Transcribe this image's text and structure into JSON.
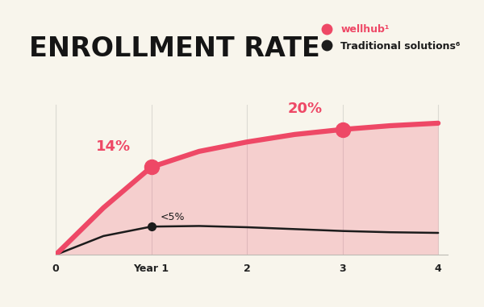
{
  "chart_data": {
    "type": "line",
    "title": "ENROLLMENT RATE",
    "x": [
      0,
      0.5,
      1,
      1.5,
      2,
      2.5,
      3,
      3.5,
      4
    ],
    "series": [
      {
        "name": "wellhub¹",
        "color": "#ee4866",
        "values": [
          0,
          7.5,
          14,
          16.5,
          18,
          19.2,
          20,
          20.6,
          21
        ]
      },
      {
        "name": "Traditional solutions⁶",
        "color": "#1c1c1c",
        "values": [
          0,
          3,
          4.5,
          4.6,
          4.4,
          4.1,
          3.8,
          3.6,
          3.5
        ]
      }
    ],
    "annotations": [
      {
        "text": "14%",
        "x": 1,
        "y": 14,
        "series": "wellhub¹"
      },
      {
        "text": "20%",
        "x": 3,
        "y": 20,
        "series": "wellhub¹"
      },
      {
        "text": "<5%",
        "x": 1,
        "y": 4.5,
        "series": "Traditional solutions⁶"
      }
    ],
    "xlim": [
      0,
      4.1
    ],
    "ylim": [
      0,
      24
    ],
    "xticks": [
      0,
      {
        "value": 1,
        "label": "Year 1"
      },
      2,
      3,
      4
    ],
    "yticks": [],
    "grid": "x",
    "legend": "upper right",
    "tick_labels": "x"
  }
}
